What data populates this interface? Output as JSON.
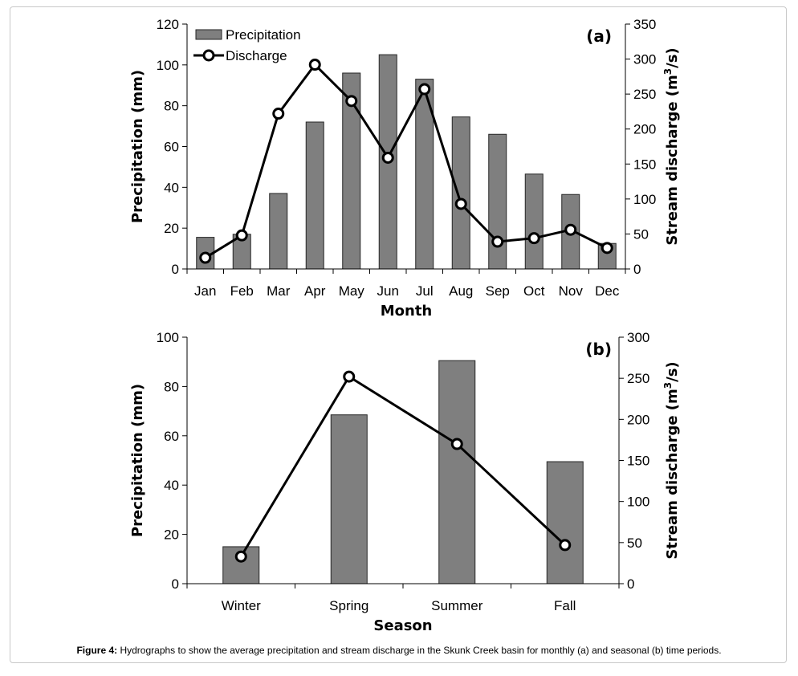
{
  "caption": {
    "label": "Figure 4:",
    "text": "Hydrographs to show the average precipitation and stream discharge in the Skunk Creek basin for monthly (a) and seasonal (b) time periods."
  },
  "colors": {
    "bar": "#7f7f7f",
    "bar_edge": "#262626",
    "line": "#000000"
  },
  "chart_data": [
    {
      "panel": "(a)",
      "type": "bar+line",
      "categories": [
        "Jan",
        "Feb",
        "Mar",
        "Apr",
        "May",
        "Jun",
        "Jul",
        "Aug",
        "Sep",
        "Oct",
        "Nov",
        "Dec"
      ],
      "series": [
        {
          "name": "Precipitation",
          "kind": "bar",
          "axis": "left",
          "values": [
            15.5,
            17,
            37,
            72,
            96,
            105,
            93,
            74.5,
            66,
            46.5,
            36.5,
            12.5
          ]
        },
        {
          "name": "Discharge",
          "kind": "line",
          "axis": "right",
          "values": [
            16,
            48,
            222,
            292,
            240,
            159,
            257,
            93,
            39,
            44,
            56,
            30
          ]
        }
      ],
      "xlabel": "Month",
      "ylabel": "Precipitation (mm)",
      "y2label_prefix": "Stream discharge (m",
      "y2label_sup": "3",
      "y2label_suffix": "/s)",
      "ylim": [
        0,
        120
      ],
      "yticks": [
        "0",
        "20",
        "40",
        "60",
        "80",
        "100",
        "120"
      ],
      "y2lim": [
        0,
        350
      ],
      "y2ticks": [
        "0",
        "50",
        "100",
        "150",
        "200",
        "250",
        "300",
        "350"
      ],
      "legend": "top-left",
      "grid": false
    },
    {
      "panel": "(b)",
      "type": "bar+line",
      "categories": [
        "Winter",
        "Spring",
        "Summer",
        "Fall"
      ],
      "series": [
        {
          "name": "Precipitation",
          "kind": "bar",
          "axis": "left",
          "values": [
            15,
            68.5,
            90.5,
            49.5
          ]
        },
        {
          "name": "Discharge",
          "kind": "line",
          "axis": "right",
          "values": [
            33,
            252,
            170,
            47
          ]
        }
      ],
      "xlabel": "Season",
      "ylabel": "Precipitation (mm)",
      "y2label_prefix": "Stream discharge (m",
      "y2label_sup": "3",
      "y2label_suffix": "/s)",
      "ylim": [
        0,
        100
      ],
      "yticks": [
        "0",
        "20",
        "40",
        "60",
        "80",
        "100"
      ],
      "y2lim": [
        0,
        300
      ],
      "y2ticks": [
        "0",
        "50",
        "100",
        "150",
        "200",
        "250",
        "300"
      ],
      "legend": "none",
      "grid": false
    }
  ]
}
